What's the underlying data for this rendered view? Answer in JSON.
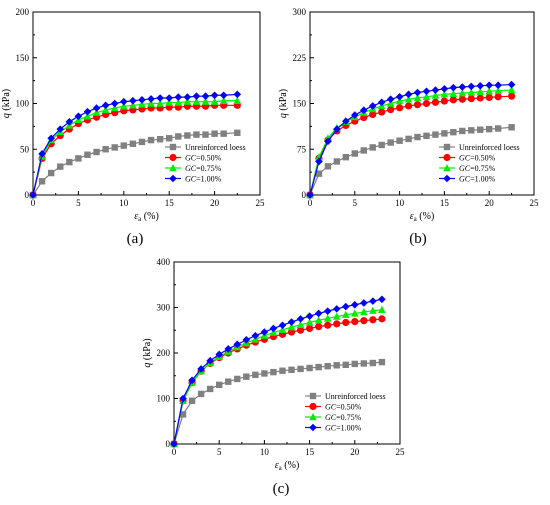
{
  "chart_data": [
    {
      "id": "a",
      "type": "line",
      "panel_label": "(a)",
      "xlabel": {
        "main": "ε",
        "sub": "a",
        "unit": " (%)"
      },
      "ylabel": {
        "main": "q",
        "unit": " (kPa)"
      },
      "xlim": [
        0,
        25
      ],
      "ylim": [
        0,
        200
      ],
      "xticks": [
        0,
        5,
        10,
        15,
        20,
        25
      ],
      "yticks": [
        0,
        50,
        100,
        150,
        200
      ],
      "legend_position": "bottom-right",
      "series": [
        {
          "name_parts": [
            "Unreinforced loess"
          ],
          "color": "#808080",
          "marker": "square",
          "x": [
            0,
            1,
            2,
            3,
            4,
            5,
            6,
            7,
            8,
            9,
            10,
            11,
            12,
            13,
            14,
            15,
            16,
            17,
            18,
            19,
            20,
            21,
            22.5
          ],
          "y": [
            0,
            15,
            24,
            31,
            36,
            40,
            44,
            47,
            50,
            52,
            54,
            56,
            58,
            60,
            61,
            62,
            64,
            65,
            66,
            66,
            67,
            67,
            68
          ]
        },
        {
          "name_parts": [
            "GC",
            "=0.50%"
          ],
          "color": "#ff0000",
          "marker": "circle",
          "x": [
            0,
            1,
            2,
            3,
            4,
            5,
            6,
            7,
            8,
            9,
            10,
            11,
            12,
            13,
            14,
            15,
            16,
            17,
            18,
            19,
            20,
            21,
            22.5
          ],
          "y": [
            0,
            40,
            56,
            65,
            72,
            78,
            82,
            85,
            88,
            90,
            92,
            93,
            94,
            95,
            95,
            96,
            96,
            97,
            97,
            97,
            98,
            98,
            98
          ]
        },
        {
          "name_parts": [
            "GC",
            "=0.75%"
          ],
          "color": "#00ee00",
          "marker": "triangle",
          "x": [
            0,
            1,
            2,
            3,
            4,
            5,
            6,
            7,
            8,
            9,
            10,
            11,
            12,
            13,
            14,
            15,
            16,
            17,
            18,
            19,
            20,
            21,
            22.5
          ],
          "y": [
            0,
            42,
            60,
            69,
            76,
            82,
            86,
            90,
            93,
            95,
            97,
            98,
            99,
            100,
            100,
            101,
            101,
            102,
            102,
            102,
            102,
            103,
            103
          ]
        },
        {
          "name_parts": [
            "GC",
            "=1.00%"
          ],
          "color": "#0000ff",
          "marker": "diamond",
          "x": [
            0,
            1,
            2,
            3,
            4,
            5,
            6,
            7,
            8,
            9,
            10,
            11,
            12,
            13,
            14,
            15,
            16,
            17,
            18,
            19,
            20,
            21,
            22.5
          ],
          "y": [
            0,
            45,
            62,
            72,
            80,
            86,
            91,
            95,
            98,
            100,
            102,
            103,
            104,
            105,
            106,
            106,
            107,
            107,
            108,
            108,
            109,
            109,
            110
          ]
        }
      ]
    },
    {
      "id": "b",
      "type": "line",
      "panel_label": "(b)",
      "xlabel": {
        "main": "ε",
        "sub": "a",
        "unit": " (%)"
      },
      "ylabel": {
        "main": "q",
        "unit": " (kPa)"
      },
      "xlim": [
        0,
        25
      ],
      "ylim": [
        0,
        300
      ],
      "xticks": [
        0,
        5,
        10,
        15,
        20,
        25
      ],
      "yticks": [
        0,
        75,
        150,
        225,
        300
      ],
      "legend_position": "bottom-right",
      "series": [
        {
          "name_parts": [
            "Unreinforced loess"
          ],
          "color": "#808080",
          "marker": "square",
          "x": [
            0,
            1,
            2,
            3,
            4,
            5,
            6,
            7,
            8,
            9,
            10,
            11,
            12,
            13,
            14,
            15,
            16,
            17,
            18,
            19,
            20,
            21,
            22.5
          ],
          "y": [
            0,
            35,
            47,
            55,
            62,
            68,
            73,
            78,
            82,
            86,
            89,
            92,
            95,
            97,
            99,
            101,
            103,
            105,
            106,
            107,
            108,
            109,
            111
          ]
        },
        {
          "name_parts": [
            "GC",
            "=0.50%"
          ],
          "color": "#ff0000",
          "marker": "circle",
          "x": [
            0,
            1,
            2,
            3,
            4,
            5,
            6,
            7,
            8,
            9,
            10,
            11,
            12,
            13,
            14,
            15,
            16,
            17,
            18,
            19,
            20,
            21,
            22.5
          ],
          "y": [
            0,
            60,
            90,
            105,
            114,
            121,
            127,
            132,
            136,
            140,
            143,
            146,
            148,
            150,
            152,
            154,
            156,
            157,
            158,
            159,
            160,
            161,
            162
          ]
        },
        {
          "name_parts": [
            "GC",
            "=0.75%"
          ],
          "color": "#00ee00",
          "marker": "triangle",
          "x": [
            0,
            1,
            2,
            3,
            4,
            5,
            6,
            7,
            8,
            9,
            10,
            11,
            12,
            13,
            14,
            15,
            16,
            17,
            18,
            19,
            20,
            21,
            22.5
          ],
          "y": [
            0,
            62,
            93,
            110,
            120,
            128,
            135,
            141,
            146,
            150,
            154,
            157,
            159,
            161,
            163,
            165,
            166,
            167,
            168,
            169,
            170,
            171,
            172
          ]
        },
        {
          "name_parts": [
            "GC",
            "=1.00%"
          ],
          "color": "#0000ff",
          "marker": "diamond",
          "x": [
            0,
            1,
            2,
            3,
            4,
            5,
            6,
            7,
            8,
            9,
            10,
            11,
            12,
            13,
            14,
            15,
            16,
            17,
            18,
            19,
            20,
            21,
            22.5
          ],
          "y": [
            0,
            55,
            88,
            108,
            121,
            131,
            139,
            146,
            152,
            157,
            161,
            165,
            168,
            170,
            172,
            174,
            176,
            177,
            178,
            179,
            180,
            180,
            181
          ]
        }
      ]
    },
    {
      "id": "c",
      "type": "line",
      "panel_label": "(c)",
      "xlabel": {
        "main": "ε",
        "sub": "a",
        "unit": " (%)"
      },
      "ylabel": {
        "main": "q",
        "unit": " (kPa)"
      },
      "xlim": [
        0,
        25
      ],
      "ylim": [
        0,
        400
      ],
      "xticks": [
        0,
        5,
        10,
        15,
        20,
        25
      ],
      "yticks": [
        0,
        100,
        200,
        300,
        400
      ],
      "legend_position": "bottom-right",
      "series": [
        {
          "name_parts": [
            "Unreinforced loess"
          ],
          "color": "#808080",
          "marker": "square",
          "x": [
            0,
            1,
            2,
            3,
            4,
            5,
            6,
            7,
            8,
            9,
            10,
            11,
            12,
            13,
            14,
            15,
            16,
            17,
            18,
            19,
            20,
            21,
            22,
            23
          ],
          "y": [
            0,
            65,
            95,
            110,
            121,
            130,
            137,
            143,
            148,
            152,
            155,
            158,
            161,
            163,
            165,
            167,
            169,
            171,
            173,
            174,
            176,
            177,
            178,
            180
          ]
        },
        {
          "name_parts": [
            "GC",
            "=0.50%"
          ],
          "color": "#ff0000",
          "marker": "circle",
          "x": [
            0,
            1,
            2,
            3,
            4,
            5,
            6,
            7,
            8,
            9,
            10,
            11,
            12,
            13,
            14,
            15,
            16,
            17,
            18,
            19,
            20,
            21,
            22,
            23
          ],
          "y": [
            0,
            95,
            135,
            160,
            177,
            190,
            200,
            209,
            217,
            224,
            230,
            236,
            241,
            246,
            250,
            254,
            258,
            261,
            264,
            267,
            269,
            271,
            273,
            275
          ]
        },
        {
          "name_parts": [
            "GC",
            "=0.75%"
          ],
          "color": "#00ee00",
          "marker": "triangle",
          "x": [
            0,
            1,
            2,
            3,
            4,
            5,
            6,
            7,
            8,
            9,
            10,
            11,
            12,
            13,
            14,
            15,
            16,
            17,
            18,
            19,
            20,
            21,
            22,
            23
          ],
          "y": [
            0,
            95,
            135,
            160,
            178,
            192,
            203,
            213,
            222,
            230,
            238,
            245,
            251,
            257,
            262,
            267,
            272,
            276,
            280,
            284,
            287,
            290,
            293,
            295
          ]
        },
        {
          "name_parts": [
            "GC",
            "=1.00%"
          ],
          "color": "#0000ff",
          "marker": "diamond",
          "x": [
            0,
            1,
            2,
            3,
            4,
            5,
            6,
            7,
            8,
            9,
            10,
            11,
            12,
            13,
            14,
            15,
            16,
            17,
            18,
            19,
            20,
            21,
            22,
            23
          ],
          "y": [
            0,
            100,
            140,
            165,
            183,
            197,
            209,
            219,
            229,
            238,
            246,
            254,
            261,
            268,
            275,
            281,
            287,
            292,
            297,
            302,
            306,
            310,
            314,
            318
          ]
        }
      ]
    }
  ]
}
